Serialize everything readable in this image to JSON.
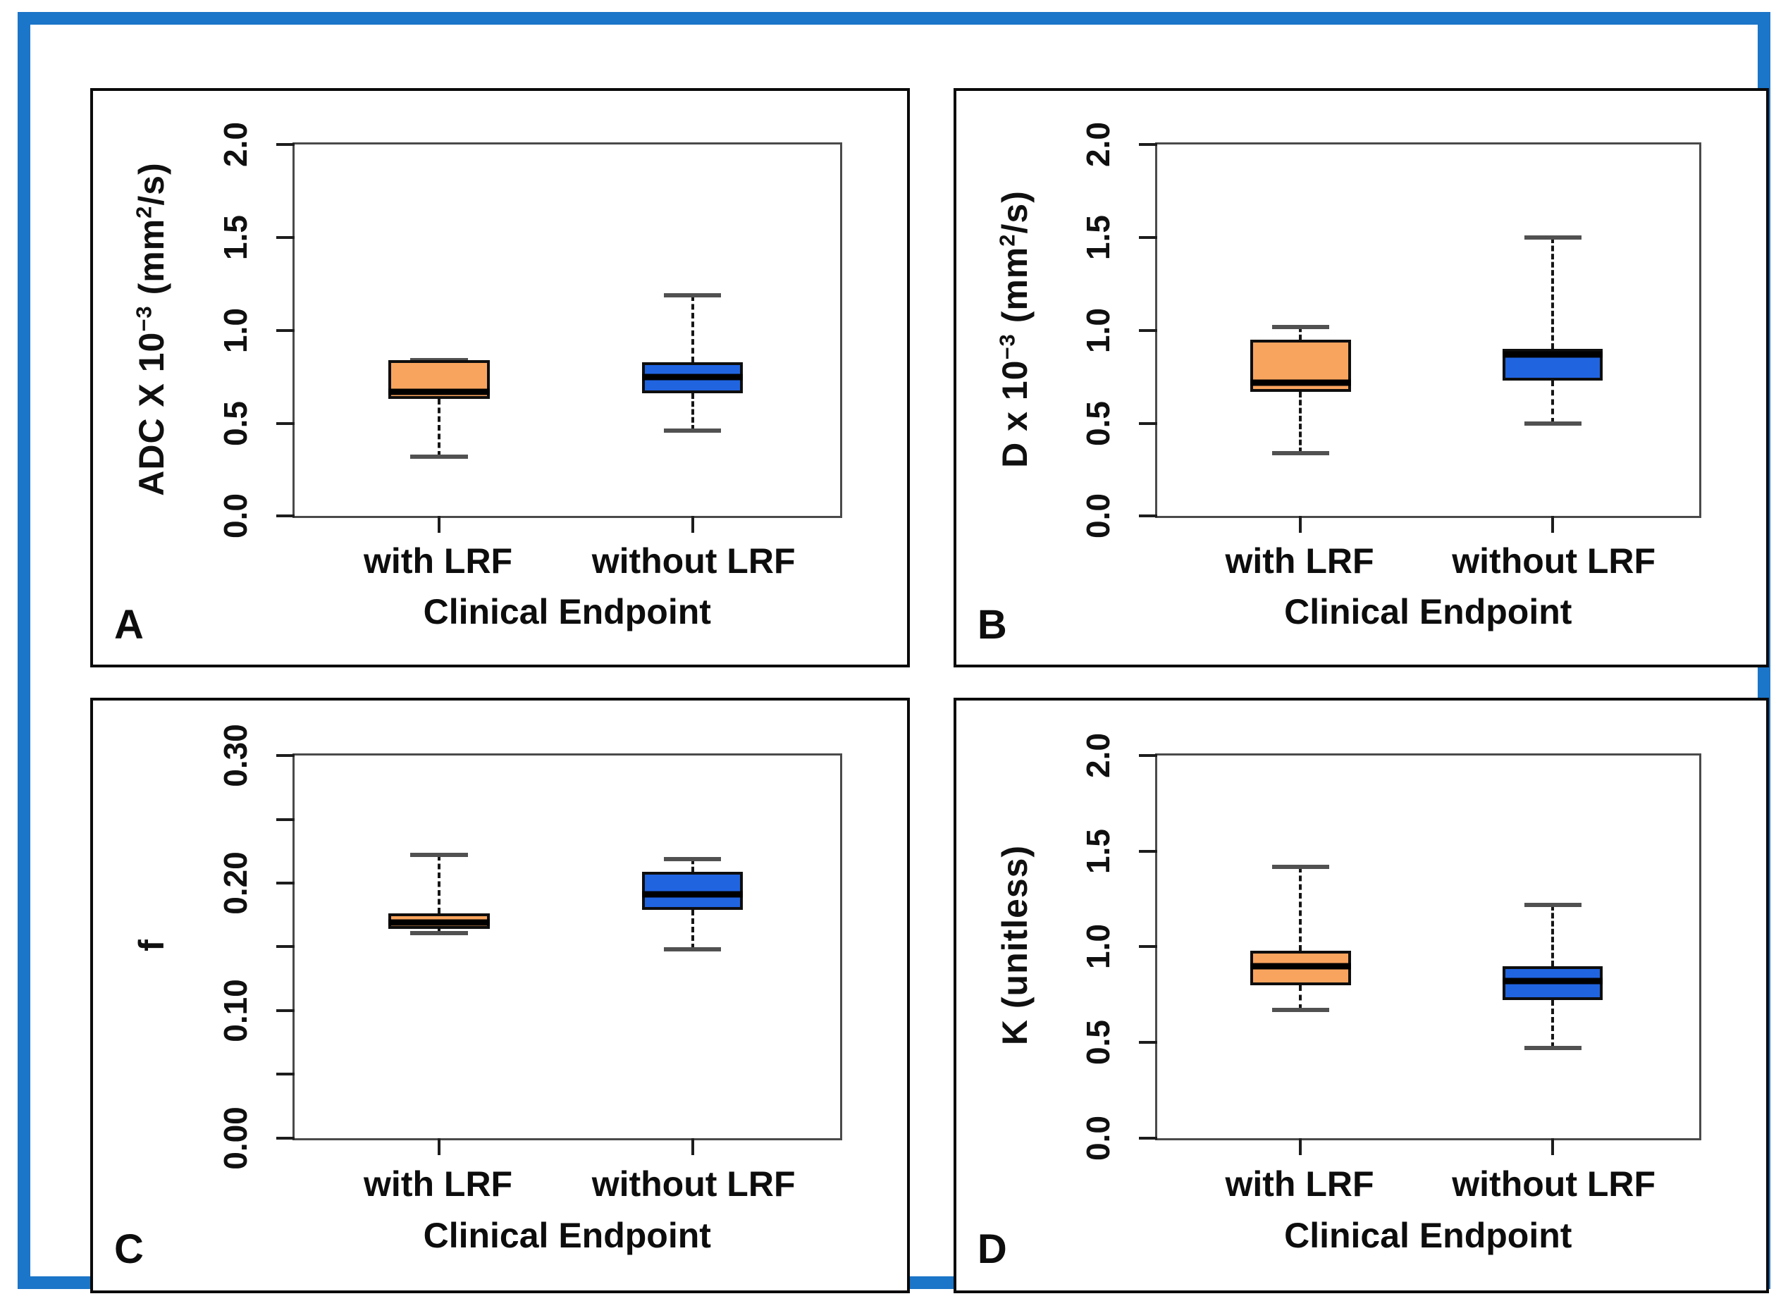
{
  "figure": {
    "background": "#FFFFFF",
    "frame_color": "#1B75C8",
    "box_fill_with_lrf": "#F9A45E",
    "box_fill_without_lrf": "#2064E0",
    "xlabel": "Clinical Endpoint",
    "categories": [
      "with LRF",
      "without LRF"
    ]
  },
  "chart_data": [
    {
      "type": "box",
      "panel": "A",
      "ylabel_text": "ADC X 10^-3 (mm^2/s)",
      "ylabel_parts": {
        "p1": "ADC X 10",
        "s1": "−3",
        "p2": " (mm",
        "s2": "2",
        "p3": "/s)"
      },
      "xlabel": "Clinical Endpoint",
      "ylim": [
        0,
        2.0
      ],
      "grid": false,
      "legend_position": "none",
      "yticks": [
        {
          "v": 0.0,
          "label": "0.0"
        },
        {
          "v": 0.5,
          "label": "0.5"
        },
        {
          "v": 1.0,
          "label": "1.0"
        },
        {
          "v": 1.5,
          "label": "1.5"
        },
        {
          "v": 2.0,
          "label": "2.0"
        }
      ],
      "categories": [
        "with LRF",
        "without LRF"
      ],
      "series": [
        {
          "name": "with LRF",
          "color": "#F9A45E",
          "whisker_low": 0.32,
          "q1": 0.63,
          "median": 0.67,
          "q3": 0.84,
          "whisker_high": 0.84
        },
        {
          "name": "without LRF",
          "color": "#2064E0",
          "whisker_low": 0.46,
          "q1": 0.66,
          "median": 0.75,
          "q3": 0.83,
          "whisker_high": 1.19
        }
      ]
    },
    {
      "type": "box",
      "panel": "B",
      "ylabel_text": "D x 10^-3 (mm^2/s)",
      "ylabel_parts": {
        "p1": "D x 10",
        "s1": "−3",
        "p2": " (mm",
        "s2": "2",
        "p3": "/s)"
      },
      "xlabel": "Clinical Endpoint",
      "ylim": [
        0,
        2.0
      ],
      "grid": false,
      "legend_position": "none",
      "yticks": [
        {
          "v": 0.0,
          "label": "0.0"
        },
        {
          "v": 0.5,
          "label": "0.5"
        },
        {
          "v": 1.0,
          "label": "1.0"
        },
        {
          "v": 1.5,
          "label": "1.5"
        },
        {
          "v": 2.0,
          "label": "2.0"
        }
      ],
      "categories": [
        "with LRF",
        "without LRF"
      ],
      "series": [
        {
          "name": "with LRF",
          "color": "#F9A45E",
          "whisker_low": 0.34,
          "q1": 0.67,
          "median": 0.72,
          "q3": 0.95,
          "whisker_high": 1.02
        },
        {
          "name": "without LRF",
          "color": "#2064E0",
          "whisker_low": 0.5,
          "q1": 0.73,
          "median": 0.87,
          "q3": 0.9,
          "whisker_high": 1.5
        }
      ]
    },
    {
      "type": "box",
      "panel": "C",
      "ylabel_text": "f",
      "ylabel_parts": {
        "p1": "f",
        "s1": "",
        "p2": "",
        "s2": "",
        "p3": ""
      },
      "xlabel": "Clinical Endpoint",
      "ylim": [
        0,
        0.3
      ],
      "grid": false,
      "legend_position": "none",
      "yticks": [
        {
          "v": 0.0,
          "label": "0.00"
        },
        {
          "v": 0.05,
          "label": ""
        },
        {
          "v": 0.1,
          "label": "0.10"
        },
        {
          "v": 0.15,
          "label": ""
        },
        {
          "v": 0.2,
          "label": "0.20"
        },
        {
          "v": 0.25,
          "label": ""
        },
        {
          "v": 0.3,
          "label": "0.30"
        }
      ],
      "categories": [
        "with LRF",
        "without LRF"
      ],
      "series": [
        {
          "name": "with LRF",
          "color": "#F9A45E",
          "whisker_low": 0.161,
          "q1": 0.164,
          "median": 0.169,
          "q3": 0.176,
          "whisker_high": 0.222
        },
        {
          "name": "without LRF",
          "color": "#2064E0",
          "whisker_low": 0.148,
          "q1": 0.179,
          "median": 0.191,
          "q3": 0.209,
          "whisker_high": 0.219
        }
      ]
    },
    {
      "type": "box",
      "panel": "D",
      "ylabel_text": "K (unitless)",
      "ylabel_parts": {
        "p1": "K (unitless)",
        "s1": "",
        "p2": "",
        "s2": "",
        "p3": ""
      },
      "xlabel": "Clinical Endpoint",
      "ylim": [
        0,
        2.0
      ],
      "grid": false,
      "legend_position": "none",
      "yticks": [
        {
          "v": 0.0,
          "label": "0.0"
        },
        {
          "v": 0.5,
          "label": "0.5"
        },
        {
          "v": 1.0,
          "label": "1.0"
        },
        {
          "v": 1.5,
          "label": "1.5"
        },
        {
          "v": 2.0,
          "label": "2.0"
        }
      ],
      "categories": [
        "with LRF",
        "without LRF"
      ],
      "series": [
        {
          "name": "with LRF",
          "color": "#F9A45E",
          "whisker_low": 0.67,
          "q1": 0.8,
          "median": 0.9,
          "q3": 0.98,
          "whisker_high": 1.42
        },
        {
          "name": "without LRF",
          "color": "#2064E0",
          "whisker_low": 0.47,
          "q1": 0.72,
          "median": 0.82,
          "q3": 0.9,
          "whisker_high": 1.22
        }
      ]
    }
  ]
}
